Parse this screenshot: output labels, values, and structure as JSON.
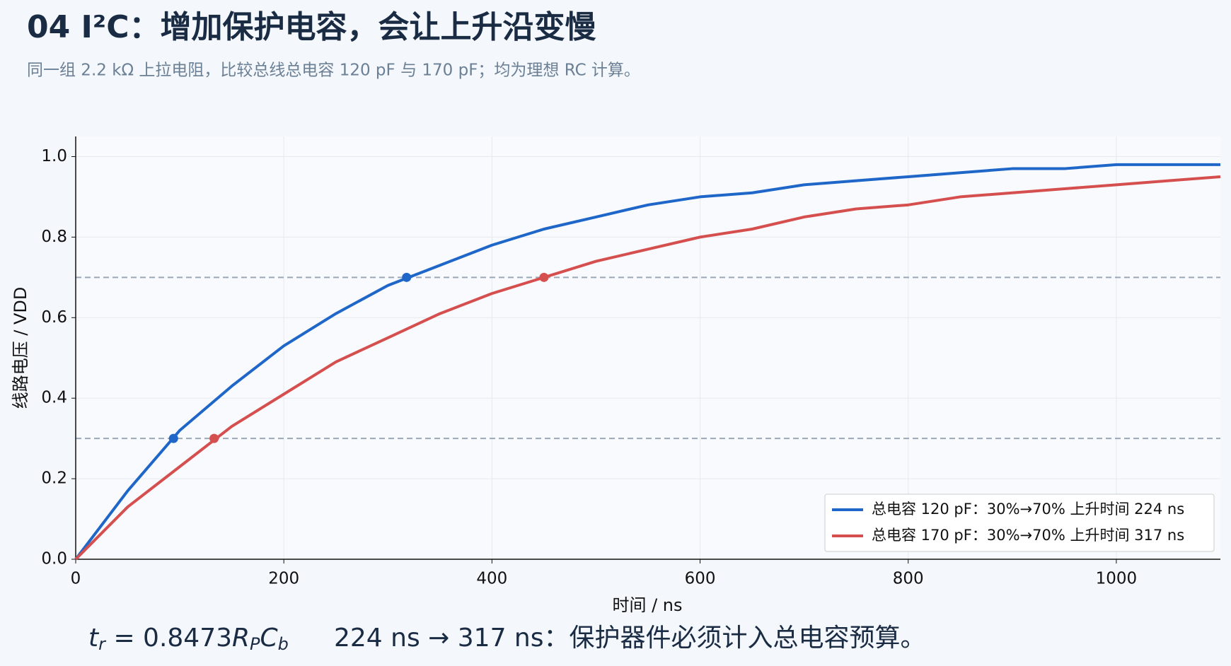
{
  "chart_data": {
    "type": "line",
    "title": "04  I²C：增加保护电容，会让上升沿变慢",
    "subtitle": "同一组 2.2 kΩ 上拉电阻，比较总线总电容 120 pF 与 170 pF；均为理想 RC 计算。",
    "x_label": "时间 / ns",
    "y_label": "线路电压 / VDD",
    "x": [
      0,
      50,
      100,
      150,
      200,
      250,
      300,
      350,
      400,
      450,
      500,
      550,
      600,
      650,
      700,
      750,
      800,
      850,
      900,
      950,
      1000,
      1050,
      1100
    ],
    "series": [
      {
        "name": "总电容 120 pF：30%→70% 上升时间 224 ns",
        "color": "#1f66c9",
        "values": [
          0,
          0.17,
          0.32,
          0.43,
          0.53,
          0.61,
          0.68,
          0.73,
          0.78,
          0.82,
          0.85,
          0.88,
          0.9,
          0.91,
          0.93,
          0.94,
          0.95,
          0.96,
          0.97,
          0.97,
          0.98,
          0.98,
          0.98
        ],
        "markers": {
          "x": [
            94,
            318
          ],
          "y": [
            0.3,
            0.7
          ]
        }
      },
      {
        "name": "总电容 170 pF：30%→70% 上升时间 317 ns",
        "color": "#d64f4f",
        "values": [
          0,
          0.13,
          0.23,
          0.33,
          0.41,
          0.49,
          0.55,
          0.61,
          0.66,
          0.7,
          0.74,
          0.77,
          0.8,
          0.82,
          0.85,
          0.87,
          0.88,
          0.9,
          0.91,
          0.92,
          0.93,
          0.94,
          0.95
        ],
        "markers": {
          "x": [
            133,
            450
          ],
          "y": [
            0.3,
            0.7
          ]
        }
      }
    ],
    "hlines": [
      0.3,
      0.7
    ],
    "xlim": [
      0,
      1100
    ],
    "xticks": [
      0,
      200,
      400,
      600,
      800,
      1000
    ],
    "ylim": [
      0,
      1.05
    ],
    "yticks": [
      {
        "value": 0,
        "label": "0.0"
      },
      {
        "value": 0.2,
        "label": "0.2"
      },
      {
        "value": 0.4,
        "label": "0.4"
      },
      {
        "value": 0.6,
        "label": "0.6"
      },
      {
        "value": 0.8,
        "label": "0.8"
      },
      {
        "value": 1,
        "label": "1.0"
      }
    ],
    "grid": true,
    "legend": "lower right",
    "formula": {
      "t": "t",
      "t_sub": "r",
      "eq": " = 0.8473",
      "r": "R",
      "r_sub": "P",
      "c": "C",
      "c_sub": "b"
    },
    "note": "224 ns → 317 ns：保护器件必须计入总电容预算。"
  }
}
